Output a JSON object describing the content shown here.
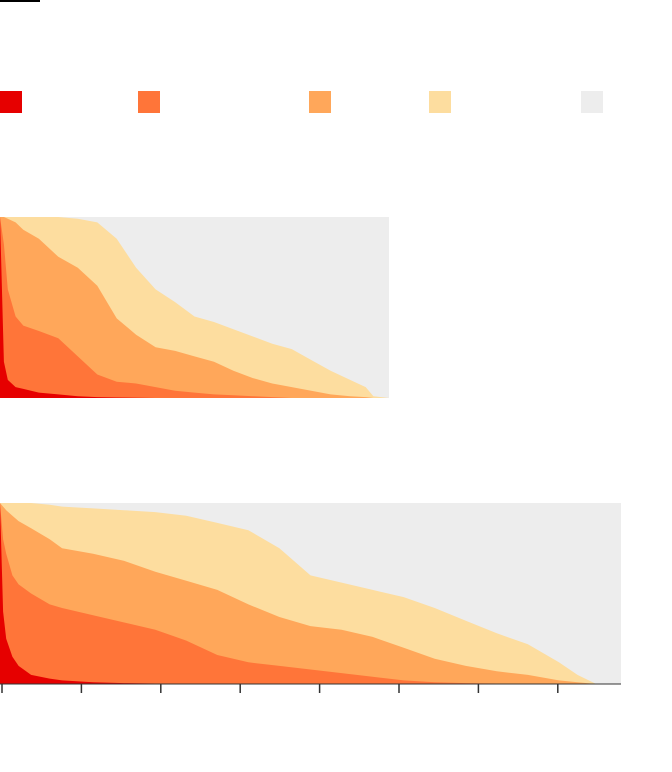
{
  "legend": [
    {
      "key": "cat1",
      "color": "#e60000"
    },
    {
      "key": "cat2",
      "color": "#ff7539"
    },
    {
      "key": "cat3",
      "color": "#ffa75a"
    },
    {
      "key": "cat4",
      "color": "#fddd9f"
    },
    {
      "key": "cat5",
      "color": "#ededed"
    }
  ],
  "chart_data": [
    {
      "type": "area",
      "stacking": "cumulative-share",
      "ylim": [
        0,
        1
      ],
      "xlim": [
        0,
        1
      ],
      "background_color": "#ededed",
      "x": [
        0,
        0.01,
        0.02,
        0.04,
        0.06,
        0.1,
        0.15,
        0.2,
        0.25,
        0.3,
        0.35,
        0.4,
        0.45,
        0.5,
        0.55,
        0.6,
        0.65,
        0.7,
        0.75,
        0.8,
        0.85,
        0.9,
        0.94,
        0.96,
        1.0
      ],
      "series": [
        {
          "key": "cat1",
          "values": [
            1.0,
            0.2,
            0.1,
            0.06,
            0.05,
            0.03,
            0.02,
            0.01,
            0.005,
            0.003,
            0.001,
            0,
            0,
            0,
            0,
            0,
            0,
            0,
            0,
            0,
            0,
            0,
            0,
            0,
            0
          ]
        },
        {
          "key": "cat2",
          "values": [
            1.0,
            0.85,
            0.6,
            0.45,
            0.4,
            0.37,
            0.33,
            0.23,
            0.13,
            0.09,
            0.08,
            0.06,
            0.04,
            0.03,
            0.02,
            0.015,
            0.01,
            0.005,
            0,
            0,
            0,
            0,
            0,
            0,
            0
          ]
        },
        {
          "key": "cat3",
          "values": [
            1.0,
            1.0,
            0.99,
            0.97,
            0.93,
            0.88,
            0.78,
            0.72,
            0.62,
            0.44,
            0.35,
            0.28,
            0.26,
            0.23,
            0.2,
            0.15,
            0.11,
            0.08,
            0.06,
            0.04,
            0.02,
            0.01,
            0.005,
            0,
            0
          ]
        },
        {
          "key": "cat4",
          "values": [
            1.0,
            1.0,
            1.0,
            1.0,
            1.0,
            1.0,
            1.0,
            0.99,
            0.97,
            0.88,
            0.72,
            0.6,
            0.53,
            0.45,
            0.42,
            0.38,
            0.34,
            0.3,
            0.27,
            0.21,
            0.15,
            0.1,
            0.06,
            0.01,
            0
          ]
        }
      ]
    },
    {
      "type": "area",
      "stacking": "cumulative-share",
      "ylim": [
        0,
        1
      ],
      "xlim": [
        0,
        1
      ],
      "background_color": "#ededed",
      "x": [
        0,
        0.005,
        0.01,
        0.02,
        0.03,
        0.05,
        0.08,
        0.1,
        0.15,
        0.2,
        0.25,
        0.3,
        0.35,
        0.4,
        0.45,
        0.5,
        0.55,
        0.6,
        0.65,
        0.7,
        0.75,
        0.8,
        0.85,
        0.9,
        0.93,
        0.96,
        1.0
      ],
      "series": [
        {
          "key": "cat1",
          "values": [
            1.0,
            0.4,
            0.25,
            0.15,
            0.1,
            0.05,
            0.03,
            0.02,
            0.01,
            0.005,
            0.003,
            0.002,
            0.001,
            0,
            0,
            0,
            0,
            0,
            0,
            0,
            0,
            0,
            0,
            0,
            0,
            0,
            0
          ]
        },
        {
          "key": "cat2",
          "values": [
            1.0,
            0.8,
            0.72,
            0.6,
            0.55,
            0.5,
            0.44,
            0.42,
            0.38,
            0.34,
            0.3,
            0.24,
            0.16,
            0.12,
            0.1,
            0.08,
            0.06,
            0.04,
            0.02,
            0.01,
            0.005,
            0.003,
            0.001,
            0,
            0,
            0,
            0
          ]
        },
        {
          "key": "cat3",
          "values": [
            1.0,
            0.98,
            0.96,
            0.93,
            0.9,
            0.86,
            0.8,
            0.75,
            0.72,
            0.68,
            0.62,
            0.57,
            0.52,
            0.44,
            0.37,
            0.32,
            0.3,
            0.26,
            0.2,
            0.14,
            0.1,
            0.07,
            0.05,
            0.02,
            0.01,
            0,
            0
          ]
        },
        {
          "key": "cat4",
          "values": [
            1.0,
            1.0,
            1.0,
            1.0,
            1.0,
            1.0,
            0.99,
            0.98,
            0.97,
            0.96,
            0.95,
            0.93,
            0.89,
            0.85,
            0.75,
            0.6,
            0.56,
            0.52,
            0.48,
            0.42,
            0.35,
            0.28,
            0.22,
            0.12,
            0.05,
            0,
            0
          ]
        }
      ]
    }
  ]
}
